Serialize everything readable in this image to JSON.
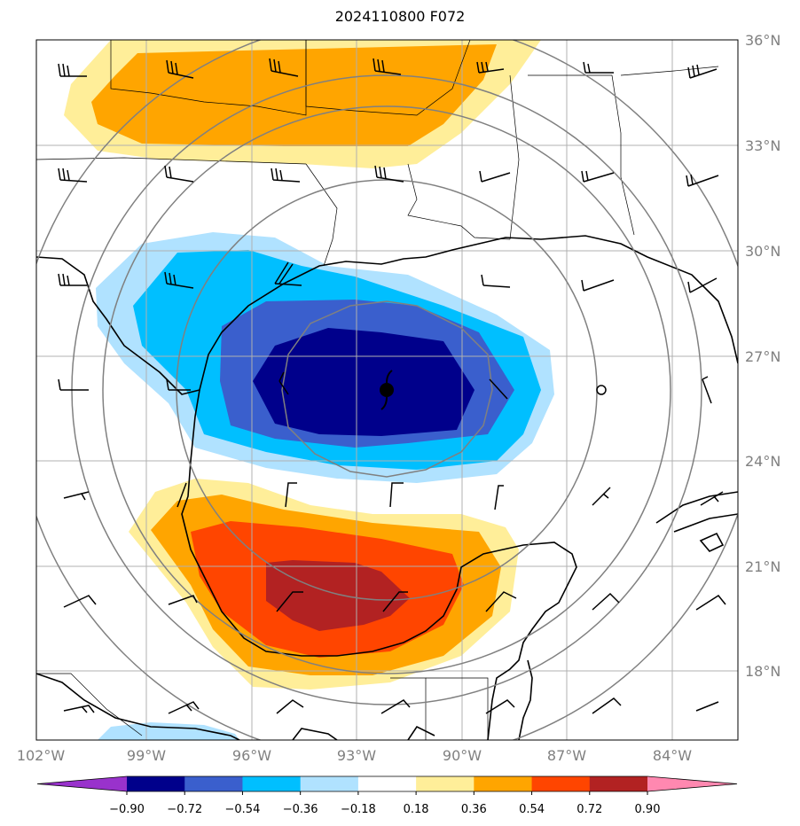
{
  "title": "2024110800 F072",
  "map": {
    "lat_labels": [
      "36°N",
      "33°N",
      "30°N",
      "27°N",
      "24°N",
      "21°N",
      "18°N"
    ],
    "lon_labels": [
      "102°W",
      "99°W",
      "96°W",
      "93°W",
      "90°W",
      "87°W",
      "84°W"
    ]
  },
  "colorbar": {
    "labels": [
      "−0.90",
      "−0.72",
      "−0.54",
      "−0.36",
      "−0.18",
      "0.18",
      "0.36",
      "0.54",
      "0.72",
      "0.90"
    ],
    "colors": [
      "#9932cc",
      "#00008b",
      "#3a5fcd",
      "#00bfff",
      "#b0e2ff",
      "#ffffff",
      "#ffee99",
      "#ffa500",
      "#ff4500",
      "#b22222",
      "#ff88b0"
    ]
  },
  "colors": {
    "grid": "#b0b0b0",
    "range_rings": "#808080",
    "coast": "#000000"
  },
  "storm_center_icon": "hurricane-symbol-icon"
}
